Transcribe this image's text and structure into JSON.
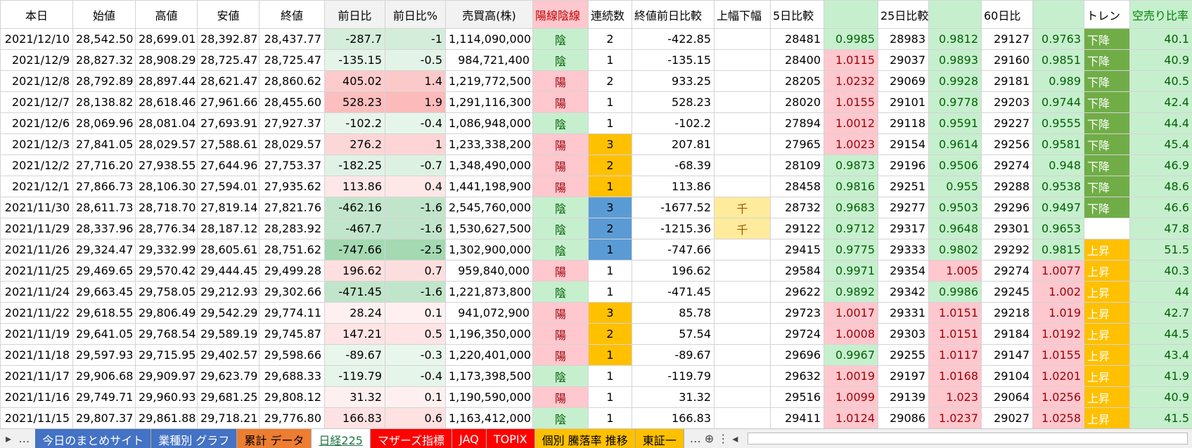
{
  "table": {
    "header": [
      "本日",
      "始値",
      "高値",
      "安値",
      "終値",
      "前日比",
      "前日比%",
      "売買高(株)",
      "陽線陰線",
      "連続数",
      "終値前日比較",
      "上幅下幅",
      "5日比較",
      null,
      "25日比較",
      null,
      "60日比",
      null,
      "トレン",
      "空売り比率"
    ],
    "rows": [
      [
        "2021/12/10",
        "28,542.50",
        "28,699.01",
        "28,392.87",
        "28,437.77",
        "-287.7",
        "-1",
        "1,114,090,000",
        "陰",
        "2",
        "-422.85",
        null,
        "28481",
        "0.9985",
        "28983",
        "0.9812",
        "29127",
        "0.9763",
        "下降",
        "40.1"
      ],
      [
        "2021/12/9",
        "28,827.32",
        "28,908.29",
        "28,725.47",
        "28,725.47",
        "-135.15",
        "-0.5",
        "984,721,400",
        "陰",
        "1",
        "-135.15",
        null,
        "28400",
        "1.0115",
        "29037",
        "0.9893",
        "29160",
        "0.9851",
        "下降",
        "40.9"
      ],
      [
        "2021/12/8",
        "28,792.89",
        "28,897.44",
        "28,621.47",
        "28,860.62",
        "405.02",
        "1.4",
        "1,219,772,500",
        "陽",
        "2",
        "933.25",
        null,
        "28205",
        "1.0232",
        "29069",
        "0.9928",
        "29181",
        "0.989",
        "下降",
        "40.5"
      ],
      [
        "2021/12/7",
        "28,138.82",
        "28,618.46",
        "27,961.66",
        "28,455.60",
        "528.23",
        "1.9",
        "1,291,116,300",
        "陽",
        "1",
        "528.23",
        null,
        "28020",
        "1.0155",
        "29101",
        "0.9778",
        "29203",
        "0.9744",
        "下降",
        "42.4"
      ],
      [
        "2021/12/6",
        "28,069.96",
        "28,081.04",
        "27,693.91",
        "27,927.37",
        "-102.2",
        "-0.4",
        "1,086,948,000",
        "陰",
        "1",
        "-102.2",
        null,
        "27894",
        "1.0012",
        "29118",
        "0.9591",
        "29227",
        "0.9555",
        "下降",
        "44.4"
      ],
      [
        "2021/12/3",
        "27,841.05",
        "28,029.57",
        "27,588.61",
        "28,029.57",
        "276.2",
        "1",
        "1,233,338,200",
        "陽",
        "3",
        "207.81",
        null,
        "27965",
        "1.0023",
        "29154",
        "0.9614",
        "29256",
        "0.9581",
        "下降",
        "45.4"
      ],
      [
        "2021/12/2",
        "27,716.20",
        "27,938.55",
        "27,644.96",
        "27,753.37",
        "-182.25",
        "-0.7",
        "1,348,490,000",
        "陽",
        "2",
        "-68.39",
        null,
        "28109",
        "0.9873",
        "29196",
        "0.9506",
        "29274",
        "0.948",
        "下降",
        "46.9"
      ],
      [
        "2021/12/1",
        "27,866.73",
        "28,106.30",
        "27,594.01",
        "27,935.62",
        "113.86",
        "0.4",
        "1,441,198,900",
        "陽",
        "1",
        "113.86",
        null,
        "28458",
        "0.9816",
        "29251",
        "0.955",
        "29288",
        "0.9538",
        "下降",
        "48.6"
      ],
      [
        "2021/11/30",
        "28,611.73",
        "28,718.70",
        "27,819.14",
        "27,821.76",
        "-462.16",
        "-1.6",
        "2,545,760,000",
        "陰",
        "3",
        "-1677.52",
        "千",
        "28732",
        "0.9683",
        "29277",
        "0.9503",
        "29296",
        "0.9497",
        "下降",
        "46.6"
      ],
      [
        "2021/11/29",
        "28,337.96",
        "28,776.34",
        "28,187.12",
        "28,283.92",
        "-467.7",
        "-1.6",
        "1,530,627,500",
        "陰",
        "2",
        "-1215.36",
        "千",
        "29122",
        "0.9712",
        "29317",
        "0.9648",
        "29301",
        "0.9653",
        null,
        "47.8"
      ],
      [
        "2021/11/26",
        "29,324.47",
        "29,332.99",
        "28,605.61",
        "28,751.62",
        "-747.66",
        "-2.5",
        "1,302,900,000",
        "陰",
        "1",
        "-747.66",
        null,
        "29415",
        "0.9775",
        "29333",
        "0.9802",
        "29292",
        "0.9815",
        "上昇",
        "51.5"
      ],
      [
        "2021/11/25",
        "29,469.65",
        "29,570.42",
        "29,444.45",
        "29,499.28",
        "196.62",
        "0.7",
        "959,840,000",
        "陽",
        "1",
        "196.62",
        null,
        "29584",
        "0.9971",
        "29354",
        "1.005",
        "29274",
        "1.0077",
        "上昇",
        "40.3"
      ],
      [
        "2021/11/24",
        "29,663.45",
        "29,758.05",
        "29,212.93",
        "29,302.66",
        "-471.45",
        "-1.6",
        "1,221,873,800",
        "陰",
        "1",
        "-471.45",
        null,
        "29622",
        "0.9892",
        "29342",
        "0.9986",
        "29245",
        "1.002",
        "上昇",
        "44"
      ],
      [
        "2021/11/22",
        "29,618.55",
        "29,806.49",
        "29,542.29",
        "29,774.11",
        "28.24",
        "0.1",
        "941,072,900",
        "陽",
        "3",
        "85.78",
        null,
        "29723",
        "1.0017",
        "29331",
        "1.0151",
        "29218",
        "1.019",
        "上昇",
        "42.7"
      ],
      [
        "2021/11/19",
        "29,641.05",
        "29,768.54",
        "29,589.19",
        "29,745.87",
        "147.21",
        "0.5",
        "1,196,350,000",
        "陽",
        "2",
        "57.54",
        null,
        "29724",
        "1.0008",
        "29303",
        "1.0151",
        "29184",
        "1.0192",
        "上昇",
        "44.5"
      ],
      [
        "2021/11/18",
        "29,597.93",
        "29,715.95",
        "29,402.57",
        "29,598.66",
        "-89.67",
        "-0.3",
        "1,220,401,000",
        "陽",
        "1",
        "-89.67",
        null,
        "29696",
        "0.9967",
        "29255",
        "1.0117",
        "29147",
        "1.0155",
        "上昇",
        "43.4"
      ],
      [
        "2021/11/17",
        "29,906.68",
        "29,909.97",
        "29,623.79",
        "29,688.33",
        "-119.79",
        "-0.4",
        "1,173,398,500",
        "陰",
        "1",
        "-119.79",
        null,
        "29632",
        "1.0019",
        "29197",
        "1.0168",
        "29104",
        "1.0201",
        "上昇",
        "41.9"
      ],
      [
        "2021/11/16",
        "29,749.71",
        "29,960.93",
        "29,681.25",
        "29,808.12",
        "31.32",
        "0.1",
        "1,190,590,000",
        "陽",
        "1",
        "31.32",
        null,
        "29516",
        "1.0099",
        "29139",
        "1.023",
        "29064",
        "1.0256",
        "上昇",
        "40.9"
      ],
      [
        "2021/11/15",
        "29,807.37",
        "29,861.88",
        "29,718.21",
        "29,776.80",
        "166.83",
        "0.6",
        "1,163,412,000",
        "陰",
        "1",
        "166.83",
        null,
        "29411",
        "1.0124",
        "29086",
        "1.0237",
        "29027",
        "1.0258",
        "上昇",
        "41.5"
      ]
    ],
    "streak_colors": [
      null,
      null,
      null,
      null,
      null,
      "#ffc000",
      "#ffc000",
      "#ffc000",
      "#5b9bd5",
      "#5b9bd5",
      "#5b9bd5",
      null,
      null,
      "#ffc000",
      "#ffc000",
      "#ffc000",
      null,
      null,
      null
    ],
    "trend_colors": {
      "下降": "#70ad47",
      "上昇": "#ffc000"
    }
  },
  "tabs": [
    {
      "label": "今日のまとめサイト",
      "color": "#4472c4",
      "text_color": "#ffffff"
    },
    {
      "label": "業種別 グラフ",
      "color": "#4472c4",
      "text_color": "#ffffff"
    },
    {
      "label": "累計 データ",
      "color": "#ed7d31",
      "text_color": "#000000"
    },
    {
      "label": "日経225",
      "color": "#ffffff",
      "text_color": "#217346"
    },
    {
      "label": "マザーズ指標",
      "color": "#ff0000",
      "text_color": "#ffffff"
    },
    {
      "label": "JAQ",
      "color": "#ff0000",
      "text_color": "#ffffff"
    },
    {
      "label": "TOPIX",
      "color": "#ff0000",
      "text_color": "#ffffff"
    },
    {
      "label": "個別 騰落率 推移",
      "color": "#ffc000",
      "text_color": "#000000"
    },
    {
      "label": "東証一",
      "color": "#ffc000",
      "text_color": "#000000"
    }
  ]
}
